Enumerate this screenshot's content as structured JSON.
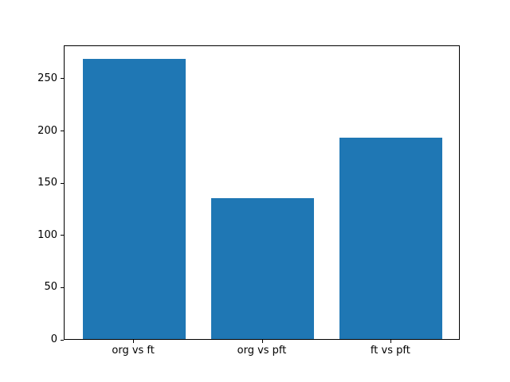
{
  "figure": {
    "background": "#ffffff"
  },
  "chart_data": {
    "type": "bar",
    "categories": [
      "org vs ft",
      "org vs pft",
      "ft vs pft"
    ],
    "values": [
      268,
      135,
      193
    ],
    "title": "",
    "xlabel": "",
    "ylabel": "",
    "ylim": [
      0,
      282
    ],
    "xlim": [
      -0.54,
      2.54
    ],
    "yticks": [
      0,
      50,
      100,
      150,
      200,
      250
    ],
    "bar_width": 0.8,
    "bar_color": "#1f77b4",
    "spine_color": "#000000",
    "grid": false,
    "legend": "none"
  }
}
